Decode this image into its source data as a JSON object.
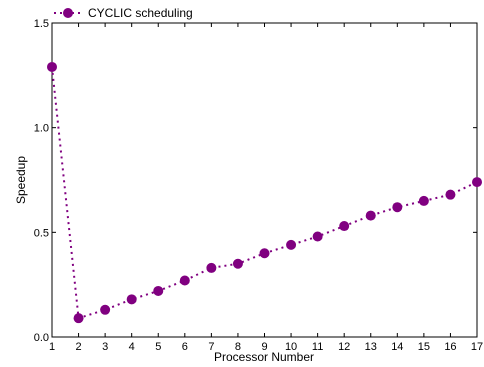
{
  "chart_data": {
    "type": "line",
    "title": "",
    "xlabel": "Processor Number",
    "ylabel": "Speedup",
    "xlim": [
      1,
      17
    ],
    "ylim": [
      0.0,
      1.5
    ],
    "x_ticks": [
      1,
      2,
      3,
      4,
      5,
      6,
      7,
      8,
      9,
      10,
      11,
      12,
      13,
      14,
      15,
      16,
      17
    ],
    "x_tick_labels": [
      "1",
      "2",
      "3",
      "4",
      "5",
      "6",
      "7",
      "8",
      "9",
      "10",
      "11",
      "12",
      "13",
      "14",
      "15",
      "16",
      "17"
    ],
    "y_ticks": [
      0.0,
      0.5,
      1.0,
      1.5
    ],
    "y_tick_labels": [
      "0.0",
      "0.5",
      "1.0",
      "1.5"
    ],
    "grid": false,
    "legend_position": "top-left",
    "series": [
      {
        "name": "CYCLIC scheduling",
        "color": "#800080",
        "line_style": "dotted",
        "marker": "circle",
        "x": [
          1,
          2,
          3,
          4,
          5,
          6,
          7,
          8,
          9,
          10,
          11,
          12,
          13,
          14,
          15,
          16,
          17
        ],
        "y": [
          1.29,
          0.09,
          0.13,
          0.18,
          0.22,
          0.27,
          0.33,
          0.35,
          0.4,
          0.44,
          0.48,
          0.53,
          0.58,
          0.62,
          0.65,
          0.68,
          0.74
        ]
      }
    ]
  }
}
